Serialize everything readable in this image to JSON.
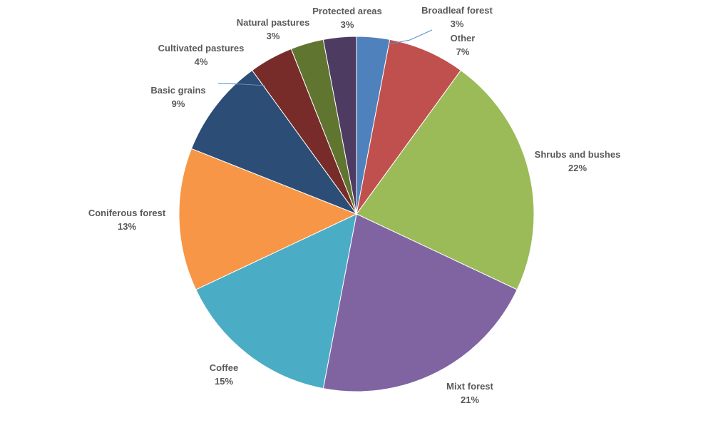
{
  "chart_data": {
    "type": "pie",
    "title": "",
    "start_angle_deg": 0,
    "direction": "clockwise",
    "legend": "none",
    "slices": [
      {
        "name": "Broadleaf forest",
        "value": 3,
        "label": "3%",
        "color": "#4f81bd"
      },
      {
        "name": "Other",
        "value": 7,
        "label": "7%",
        "color": "#c0504d"
      },
      {
        "name": "Shrubs and bushes",
        "value": 22,
        "label": "22%",
        "color": "#9bbb59"
      },
      {
        "name": "Mixt forest",
        "value": 21,
        "label": "21%",
        "color": "#8064a2"
      },
      {
        "name": "Coffee",
        "value": 15,
        "label": "15%",
        "color": "#4bacc6"
      },
      {
        "name": "Coniferous forest",
        "value": 13,
        "label": "13%",
        "color": "#f79646"
      },
      {
        "name": "Basic grains",
        "value": 9,
        "label": "9%",
        "color": "#2c4d75"
      },
      {
        "name": "Cultivated pastures",
        "value": 4,
        "label": "4%",
        "color": "#772c2a"
      },
      {
        "name": "Natural pastures",
        "value": 3,
        "label": "3%",
        "color": "#5f7530"
      },
      {
        "name": "Protected areas",
        "value": 3,
        "label": "3%",
        "color": "#4d3b62"
      }
    ]
  }
}
